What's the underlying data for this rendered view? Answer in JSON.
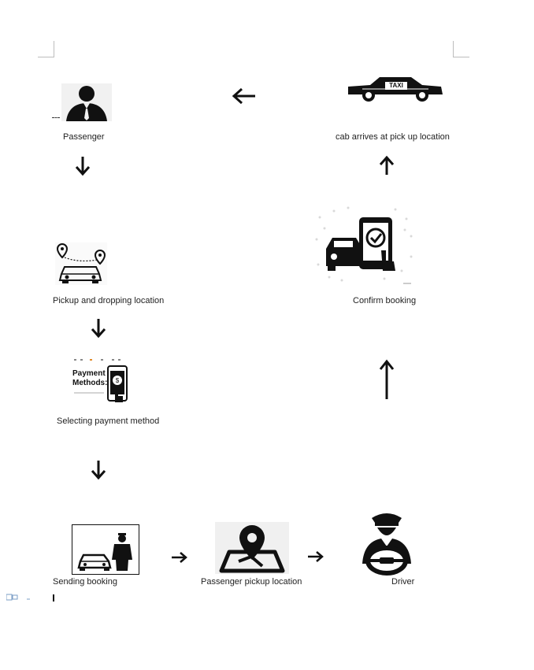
{
  "steps": {
    "passenger": "Passenger",
    "pickup_drop": "Pickup and dropping location",
    "payment": "Selecting payment method",
    "sending": "Sending booking",
    "pickup_loc": "Passenger pickup location",
    "driver": "Driver",
    "confirm": "Confirm booking",
    "cab_arrives": "cab arrives at pick up location"
  },
  "taxi_sign": "TAXI",
  "payment_card": {
    "title_line1": "Payment",
    "title_line2": "Methods:"
  },
  "icons": {
    "passenger": "person-suit-icon",
    "taxi": "taxi-icon",
    "route": "car-route-pins-icon",
    "confirm": "car-phone-check-icon",
    "payment": "phone-payment-icon",
    "sending": "car-person-icon",
    "map": "map-pin-icon",
    "driver": "driver-steering-icon"
  },
  "colors": {
    "icon": "#111111",
    "text": "#222222"
  }
}
